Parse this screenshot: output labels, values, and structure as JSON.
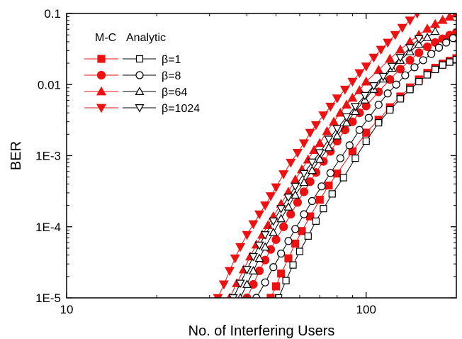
{
  "chart_data": {
    "type": "line",
    "title": "",
    "xlabel": "No. of Interfering Users",
    "ylabel": "BER",
    "x_scale": "log",
    "y_scale": "log",
    "xlim": [
      10,
      200
    ],
    "ylim": [
      1e-05,
      0.1
    ],
    "x_ticks": [
      {
        "value": 10,
        "label": "10"
      },
      {
        "value": 100,
        "label": "100"
      }
    ],
    "y_ticks": [
      {
        "value": 0.1,
        "label": "0.1"
      },
      {
        "value": 0.01,
        "label": "0.01"
      },
      {
        "value": 0.001,
        "label": "1E-3"
      },
      {
        "value": 0.0001,
        "label": "1E-4"
      },
      {
        "value": 1e-05,
        "label": "1E-5"
      }
    ],
    "grid": false,
    "legend": {
      "placement": "top-left",
      "header_mc": "M-C",
      "header_analytic": "Analytic",
      "entries": [
        "β=1",
        "β=8",
        "β=64",
        "β=1024"
      ]
    },
    "series": [
      {
        "name": "β=1",
        "method": "M-C",
        "marker": "square-filled",
        "color": "#ee1111",
        "x": [
          48,
          50,
          52,
          55,
          58,
          61,
          65,
          70,
          75,
          80,
          90,
          100,
          110,
          120,
          130,
          140,
          150,
          160,
          170,
          180,
          190,
          200
        ],
        "y": [
          1e-05,
          1.45e-05,
          2.2e-05,
          3.6e-05,
          5.8e-05,
          8.7e-05,
          0.00014,
          0.00024,
          0.00038,
          0.00056,
          0.00115,
          0.0021,
          0.0032,
          0.0048,
          0.0068,
          0.0091,
          0.0118,
          0.0146,
          0.0172,
          0.0197,
          0.0216,
          0.0235
        ]
      },
      {
        "name": "β=1",
        "method": "Analytic",
        "marker": "square-open",
        "color": "#000000",
        "x": [
          51,
          54,
          57,
          60,
          64,
          68,
          72,
          77,
          84,
          92,
          100,
          110,
          120,
          130,
          140,
          150,
          160,
          170,
          180,
          190,
          200
        ],
        "y": [
          1e-05,
          1.75e-05,
          2.9e-05,
          4.5e-05,
          7.4e-05,
          0.00012,
          0.00018,
          0.00029,
          0.00049,
          0.00092,
          0.0016,
          0.0029,
          0.0044,
          0.0063,
          0.0085,
          0.011,
          0.0137,
          0.0163,
          0.0188,
          0.0207,
          0.0225
        ]
      },
      {
        "name": "β=8",
        "method": "M-C",
        "marker": "circle-filled",
        "color": "#ee1111",
        "x": [
          40,
          42,
          44,
          46,
          48,
          50,
          53,
          56,
          59,
          62,
          65,
          68,
          72,
          76,
          80,
          85,
          90,
          95,
          100,
          110,
          120,
          130,
          140,
          150,
          160,
          170,
          180,
          190,
          200
        ],
        "y": [
          1e-05,
          1.55e-05,
          2.4e-05,
          3.4e-05,
          4.8e-05,
          6.6e-05,
          0.0001,
          0.00015,
          0.00022,
          0.00031,
          0.00043,
          0.00058,
          0.00083,
          0.00115,
          0.0016,
          0.0023,
          0.003,
          0.004,
          0.005,
          0.0079,
          0.0118,
          0.0165,
          0.022,
          0.028,
          0.034,
          0.039,
          0.044,
          0.0495,
          0.054
        ]
      },
      {
        "name": "β=8",
        "method": "Analytic",
        "marker": "circle-open",
        "color": "#000000",
        "x": [
          43,
          46,
          49,
          52,
          55,
          58,
          62,
          66,
          71,
          76,
          82,
          88,
          95,
          102,
          110,
          118,
          126,
          135,
          145,
          155,
          165,
          175,
          185,
          195
        ],
        "y": [
          1e-05,
          1.65e-05,
          2.7e-05,
          4.2e-05,
          6.3e-05,
          9.3e-05,
          0.00015,
          0.00023,
          0.00037,
          0.00057,
          0.00092,
          0.0014,
          0.0023,
          0.0034,
          0.0052,
          0.0075,
          0.01,
          0.0135,
          0.0175,
          0.022,
          0.027,
          0.033,
          0.039,
          0.045
        ]
      },
      {
        "name": "β=64",
        "method": "M-C",
        "marker": "triangle-up-filled",
        "color": "#ee1111",
        "x": [
          35,
          37,
          39,
          41,
          43,
          45,
          47,
          49,
          52,
          55,
          58,
          61,
          64,
          67,
          70,
          74,
          78,
          82,
          86,
          90,
          95,
          100,
          110,
          120,
          130,
          140,
          150,
          160,
          170,
          180,
          190,
          200
        ],
        "y": [
          1e-05,
          1.6e-05,
          2.5e-05,
          3.8e-05,
          5.6e-05,
          7.7e-05,
          0.000105,
          0.00014,
          0.00021,
          0.00031,
          0.00046,
          0.00064,
          0.00088,
          0.0012,
          0.0015,
          0.0022,
          0.003,
          0.004,
          0.0052,
          0.0065,
          0.0083,
          0.011,
          0.016,
          0.023,
          0.031,
          0.04,
          0.05,
          0.061,
          0.071,
          0.081,
          0.09,
          0.1
        ]
      },
      {
        "name": "β=64",
        "method": "Analytic",
        "marker": "triangle-up-open",
        "color": "#000000",
        "x": [
          38,
          40,
          42,
          44,
          46,
          49,
          52,
          55,
          58,
          62,
          66,
          70,
          75,
          80,
          86,
          92,
          99,
          106,
          114,
          122,
          130,
          140,
          150,
          160,
          170
        ],
        "y": [
          1e-05,
          1.55e-05,
          2.4e-05,
          3.6e-05,
          5.2e-05,
          8.3e-05,
          0.00013,
          0.00019,
          0.00028,
          0.00042,
          0.00062,
          0.00089,
          0.0013,
          0.0019,
          0.0029,
          0.0042,
          0.0061,
          0.0086,
          0.012,
          0.017,
          0.022,
          0.029,
          0.037,
          0.046,
          0.056
        ]
      },
      {
        "name": "β=1024",
        "method": "M-C",
        "marker": "triangle-down-filled",
        "color": "#ee1111",
        "x": [
          32,
          33.5,
          35,
          36.5,
          38,
          40,
          42,
          44,
          46,
          48,
          50,
          53,
          56,
          59,
          62,
          65,
          68,
          72,
          76,
          80,
          85,
          90,
          95,
          100,
          106,
          112,
          118,
          125,
          132,
          140,
          148
        ],
        "y": [
          1e-05,
          1.55e-05,
          2.4e-05,
          3.6e-05,
          5.2e-05,
          7.7e-05,
          0.000109,
          0.00015,
          0.0002,
          0.00027,
          0.00036,
          0.00055,
          0.0008,
          0.0011,
          0.0015,
          0.0021,
          0.0027,
          0.0037,
          0.0049,
          0.0064,
          0.0085,
          0.011,
          0.0145,
          0.018,
          0.024,
          0.031,
          0.039,
          0.05,
          0.063,
          0.08,
          0.1
        ]
      },
      {
        "name": "β=1024",
        "method": "Analytic",
        "marker": "triangle-down-open",
        "color": "#000000",
        "x": [
          36,
          38,
          40,
          42,
          44,
          46,
          49,
          52,
          55,
          58,
          62,
          66,
          70,
          75,
          80,
          86,
          92,
          99,
          106,
          114,
          122,
          130,
          140,
          150
        ],
        "y": [
          1e-05,
          1.6e-05,
          2.5e-05,
          3.8e-05,
          5.5e-05,
          7.7e-05,
          0.00012,
          0.00018,
          0.00026,
          0.00037,
          0.00056,
          0.00081,
          0.0011,
          0.0017,
          0.0024,
          0.0035,
          0.0049,
          0.007,
          0.0096,
          0.013,
          0.018,
          0.024,
          0.033,
          0.044
        ]
      }
    ]
  }
}
